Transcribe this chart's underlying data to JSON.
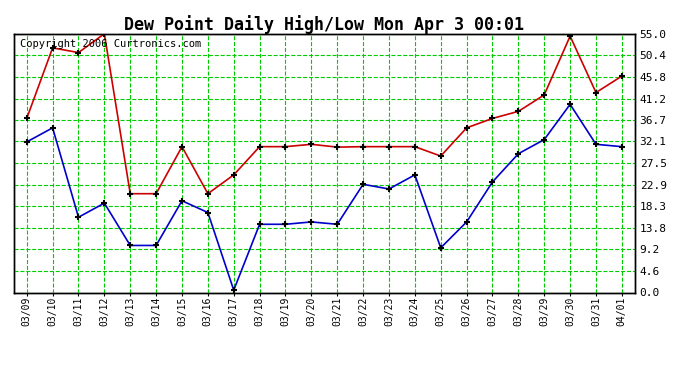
{
  "title": "Dew Point Daily High/Low Mon Apr 3 00:01",
  "copyright": "Copyright 2006 Curtronics.com",
  "dates": [
    "03/09",
    "03/10",
    "03/11",
    "03/12",
    "03/13",
    "03/14",
    "03/15",
    "03/16",
    "03/17",
    "03/18",
    "03/19",
    "03/20",
    "03/21",
    "03/22",
    "03/23",
    "03/24",
    "03/25",
    "03/26",
    "03/27",
    "03/28",
    "03/29",
    "03/30",
    "03/31",
    "04/01"
  ],
  "high": [
    37.0,
    52.0,
    51.0,
    55.0,
    21.0,
    21.0,
    31.0,
    21.0,
    25.0,
    31.0,
    31.0,
    31.5,
    30.9,
    31.0,
    31.0,
    31.0,
    29.0,
    35.0,
    37.0,
    38.5,
    42.0,
    54.5,
    42.5,
    46.0
  ],
  "low": [
    32.0,
    35.0,
    16.0,
    19.0,
    10.0,
    10.0,
    19.5,
    17.0,
    0.5,
    14.5,
    14.5,
    15.0,
    14.5,
    23.0,
    22.0,
    25.0,
    9.5,
    15.0,
    23.5,
    29.5,
    32.5,
    40.0,
    31.5,
    31.0
  ],
  "high_color": "#cc0000",
  "low_color": "#0000cc",
  "background_color": "#ffffff",
  "grid_color": "#00cc00",
  "ylim": [
    0.0,
    55.0
  ],
  "yticks": [
    0.0,
    4.6,
    9.2,
    13.8,
    18.3,
    22.9,
    27.5,
    32.1,
    36.7,
    41.2,
    45.8,
    50.4,
    55.0
  ],
  "title_fontsize": 12,
  "copyright_fontsize": 7.5
}
